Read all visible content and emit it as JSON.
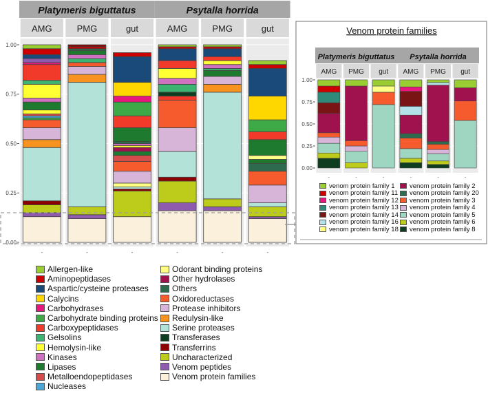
{
  "chart_data": [
    {
      "type": "bar",
      "stacked": true,
      "title": "",
      "xlabel": "",
      "ylabel": "",
      "ylim": [
        0,
        1
      ],
      "y_ticks": [
        "0.00",
        "0.25",
        "0.50",
        "0.75",
        "1.00"
      ],
      "x_tick_label": "-",
      "species": [
        "Platymeris biguttatus",
        "Psytalla horrida"
      ],
      "categories": [
        "AMG",
        "PMG",
        "gut"
      ],
      "bars": [
        {
          "species": "Platymeris biguttatus",
          "sample": "AMG",
          "segments": [
            {
              "cat": "Venom protein families",
              "v": 0.13
            },
            {
              "cat": "Venom peptides",
              "v": 0.02
            },
            {
              "cat": "Uncharacterized",
              "v": 0.04
            },
            {
              "cat": "Transferrins",
              "v": 0.02
            },
            {
              "cat": "Serine proteases",
              "v": 0.27
            },
            {
              "cat": "Redulysin-like",
              "v": 0.04
            },
            {
              "cat": "Protease inhibitors",
              "v": 0.06
            },
            {
              "cat": "Oxidoreductases",
              "v": 0.04
            },
            {
              "cat": "Carbohydrate binding proteins",
              "v": 0.01
            },
            {
              "cat": "Nucleases",
              "v": 0.01
            },
            {
              "cat": "Metalloendopeptidases",
              "v": 0.01
            },
            {
              "cat": "Hemolysin-like",
              "v": 0.02
            },
            {
              "cat": "Lipases",
              "v": 0.04
            },
            {
              "cat": "Kinases",
              "v": 0.02
            },
            {
              "cat": "Hemolysin-like",
              "v": 0.07
            },
            {
              "cat": "Gelsolins",
              "v": 0.02
            },
            {
              "cat": "Carboxypeptidases",
              "v": 0.08
            },
            {
              "cat": "Carbohydrases",
              "v": 0.01
            },
            {
              "cat": "Venom peptides",
              "v": 0.02
            },
            {
              "cat": "Aspartic/cysteine proteases",
              "v": 0.02
            },
            {
              "cat": "Aminopeptidases",
              "v": 0.03
            },
            {
              "cat": "Allergen-like",
              "v": 0.02
            }
          ]
        },
        {
          "species": "Platymeris biguttatus",
          "sample": "PMG",
          "segments": [
            {
              "cat": "Venom protein families",
              "v": 0.12
            },
            {
              "cat": "Venom peptides",
              "v": 0.02
            },
            {
              "cat": "Uncharacterized",
              "v": 0.04
            },
            {
              "cat": "Serine proteases",
              "v": 0.63
            },
            {
              "cat": "Redulysin-like",
              "v": 0.04
            },
            {
              "cat": "Protease inhibitors",
              "v": 0.04
            },
            {
              "cat": "Oxidoreductases",
              "v": 0.02
            },
            {
              "cat": "Gelsolins",
              "v": 0.02
            },
            {
              "cat": "Kinases",
              "v": 0.02
            },
            {
              "cat": "Lipases",
              "v": 0.02
            },
            {
              "cat": "Others",
              "v": 0.01
            },
            {
              "cat": "Aminopeptidases",
              "v": 0.01
            },
            {
              "cat": "Transferrins",
              "v": 0.01
            }
          ]
        },
        {
          "species": "Platymeris biguttatus",
          "sample": "gut",
          "segments": [
            {
              "cat": "Venom protein families",
              "v": 0.13
            },
            {
              "cat": "Uncharacterized",
              "v": 0.13
            },
            {
              "cat": "Transferrins",
              "v": 0.01
            },
            {
              "cat": "Serine proteases",
              "v": 0.01
            },
            {
              "cat": "Odorant binding proteins",
              "v": 0.02
            },
            {
              "cat": "Protease inhibitors",
              "v": 0.06
            },
            {
              "cat": "Oxidoreductases",
              "v": 0.05
            },
            {
              "cat": "Metalloendopeptidases",
              "v": 0.03
            },
            {
              "cat": "Lipases",
              "v": 0.02
            },
            {
              "cat": "Other hydrolases",
              "v": 0.02
            },
            {
              "cat": "Hemolysin-like",
              "v": 0.01
            },
            {
              "cat": "Kinases",
              "v": 0.01
            },
            {
              "cat": "Others",
              "v": 0.01
            },
            {
              "cat": "Lipases",
              "v": 0.07
            },
            {
              "cat": "Carboxypeptidases",
              "v": 0.06
            },
            {
              "cat": "Carbohydrate binding proteins",
              "v": 0.07
            },
            {
              "cat": "Carbohydrases",
              "v": 0.03
            },
            {
              "cat": "Calycins",
              "v": 0.07
            },
            {
              "cat": "Aspartic/cysteine proteases",
              "v": 0.13
            },
            {
              "cat": "Aminopeptidases",
              "v": 0.02
            }
          ]
        },
        {
          "species": "Psytalla horrida",
          "sample": "AMG",
          "segments": [
            {
              "cat": "Venom protein families",
              "v": 0.16
            },
            {
              "cat": "Venom peptides",
              "v": 0.04
            },
            {
              "cat": "Uncharacterized",
              "v": 0.11
            },
            {
              "cat": "Transferrins",
              "v": 0.02
            },
            {
              "cat": "Serine proteases",
              "v": 0.13
            },
            {
              "cat": "Protease inhibitors",
              "v": 0.12
            },
            {
              "cat": "Oxidoreductases",
              "v": 0.14
            },
            {
              "cat": "Carboxypeptidases",
              "v": 0.02
            },
            {
              "cat": "Transferases",
              "v": 0.02
            },
            {
              "cat": "Gelsolins",
              "v": 0.04
            },
            {
              "cat": "Kinases",
              "v": 0.03
            },
            {
              "cat": "Hemolysin-like",
              "v": 0.05
            },
            {
              "cat": "Carboxypeptidases",
              "v": 0.04
            },
            {
              "cat": "Aspartic/cysteine proteases",
              "v": 0.06
            },
            {
              "cat": "Aminopeptidases",
              "v": 0.01
            },
            {
              "cat": "Allergen-like",
              "v": 0.01
            }
          ]
        },
        {
          "species": "Psytalla horrida",
          "sample": "PMG",
          "segments": [
            {
              "cat": "Venom protein families",
              "v": 0.16
            },
            {
              "cat": "Venom peptides",
              "v": 0.02
            },
            {
              "cat": "Uncharacterized",
              "v": 0.04
            },
            {
              "cat": "Serine proteases",
              "v": 0.54
            },
            {
              "cat": "Redulysin-like",
              "v": 0.04
            },
            {
              "cat": "Protease inhibitors",
              "v": 0.04
            },
            {
              "cat": "Lipases",
              "v": 0.03
            },
            {
              "cat": "Gelsolins",
              "v": 0.01
            },
            {
              "cat": "Kinases",
              "v": 0.02
            },
            {
              "cat": "Hemolysin-like",
              "v": 0.02
            },
            {
              "cat": "Carboxypeptidases",
              "v": 0.02
            },
            {
              "cat": "Aspartic/cysteine proteases",
              "v": 0.04
            },
            {
              "cat": "Aminopeptidases",
              "v": 0.01
            },
            {
              "cat": "Allergen-like",
              "v": 0.01
            }
          ]
        },
        {
          "species": "Psytalla horrida",
          "sample": "gut",
          "segments": [
            {
              "cat": "Venom protein families",
              "v": 0.12
            },
            {
              "cat": "Venom peptides",
              "v": 0.01
            },
            {
              "cat": "Uncharacterized",
              "v": 0.05
            },
            {
              "cat": "Serine proteases",
              "v": 0.02
            },
            {
              "cat": "Protease inhibitors",
              "v": 0.09
            },
            {
              "cat": "Oxidoreductases",
              "v": 0.07
            },
            {
              "cat": "Others",
              "v": 0.04
            },
            {
              "cat": "Lipases",
              "v": 0.02
            },
            {
              "cat": "Odorant binding proteins",
              "v": 0.02
            },
            {
              "cat": "Lipases",
              "v": 0.08
            },
            {
              "cat": "Carboxypeptidases",
              "v": 0.04
            },
            {
              "cat": "Carbohydrate binding proteins",
              "v": 0.06
            },
            {
              "cat": "Calycins",
              "v": 0.12
            },
            {
              "cat": "Aspartic/cysteine proteases",
              "v": 0.14
            },
            {
              "cat": "Aminopeptidases",
              "v": 0.02
            },
            {
              "cat": "Allergen-like",
              "v": 0.02
            }
          ]
        }
      ],
      "legend": [
        {
          "label": "Allergen-like",
          "color": "#9ACD32"
        },
        {
          "label": "Aminopeptidases",
          "color": "#CC0000"
        },
        {
          "label": "Aspartic/cysteine proteases",
          "color": "#1A4A7A"
        },
        {
          "label": "Calycins",
          "color": "#FFD700"
        },
        {
          "label": "Carbohydrases",
          "color": "#E8177D"
        },
        {
          "label": "Carbohydrate binding proteins",
          "color": "#3DAA47"
        },
        {
          "label": "Carboxypeptidases",
          "color": "#F23A2A"
        },
        {
          "label": "Gelsolins",
          "color": "#3CB371"
        },
        {
          "label": "Hemolysin-like",
          "color": "#FFFF33"
        },
        {
          "label": "Kinases",
          "color": "#D070C0"
        },
        {
          "label": "Lipases",
          "color": "#1E7A2E"
        },
        {
          "label": "Metalloendopeptidases",
          "color": "#D84B4B"
        },
        {
          "label": "Nucleases",
          "color": "#4AA8D8"
        },
        {
          "label": "Odorant binding proteins",
          "color": "#FFFF88"
        },
        {
          "label": "Other hydrolases",
          "color": "#A0124D"
        },
        {
          "label": "Others",
          "color": "#2E6B4E"
        },
        {
          "label": "Oxidoreductases",
          "color": "#F65B2E"
        },
        {
          "label": "Protease inhibitors",
          "color": "#D7B5D8"
        },
        {
          "label": "Redulysin-like",
          "color": "#F7931E"
        },
        {
          "label": "Serine proteases",
          "color": "#B3E2D8"
        },
        {
          "label": "Transferases",
          "color": "#0E3D1F"
        },
        {
          "label": "Transferrins",
          "color": "#8B0000"
        },
        {
          "label": "Uncharacterized",
          "color": "#BDCC1A"
        },
        {
          "label": "Venom peptides",
          "color": "#8E5BAE"
        },
        {
          "label": "Venom protein families",
          "color": "#FAF0DC"
        }
      ]
    },
    {
      "type": "bar",
      "stacked": true,
      "title": "Venom protein families",
      "xlabel": "",
      "ylabel": "",
      "ylim": [
        0,
        1
      ],
      "y_ticks": [
        "0.00",
        "0.25",
        "0.50",
        "0.75",
        "1.00"
      ],
      "x_tick_label": "-",
      "species": [
        "Platymeris biguttatus",
        "Psytalla horrida"
      ],
      "categories": [
        "AMG",
        "PMG",
        "gut"
      ],
      "bars": [
        {
          "species": "Platymeris biguttatus",
          "sample": "AMG",
          "segments": [
            {
              "cat": "venom protein family 8",
              "v": 0.11
            },
            {
              "cat": "venom protein family 6",
              "v": 0.06
            },
            {
              "cat": "venom protein family 5",
              "v": 0.11
            },
            {
              "cat": "venom protein family 4",
              "v": 0.07
            },
            {
              "cat": "venom protein family 3",
              "v": 0.05
            },
            {
              "cat": "venom protein family 2",
              "v": 0.22
            },
            {
              "cat": "venom protein family 14",
              "v": 0.12
            },
            {
              "cat": "venom protein family 13",
              "v": 0.12
            },
            {
              "cat": "venom protein family 11",
              "v": 0.07
            },
            {
              "cat": "venom protein family 1",
              "v": 0.07
            }
          ]
        },
        {
          "species": "Platymeris biguttatus",
          "sample": "PMG",
          "segments": [
            {
              "cat": "venom protein family 6",
              "v": 0.06
            },
            {
              "cat": "venom protein family 5",
              "v": 0.13
            },
            {
              "cat": "venom protein family 4",
              "v": 0.06
            },
            {
              "cat": "venom protein family 3",
              "v": 0.06
            },
            {
              "cat": "venom protein family 2",
              "v": 0.62
            },
            {
              "cat": "venom protein family 1",
              "v": 0.07
            }
          ]
        },
        {
          "species": "Platymeris biguttatus",
          "sample": "gut",
          "segments": [
            {
              "cat": "venom protein family 5",
              "v": 0.72
            },
            {
              "cat": "venom protein family 3",
              "v": 0.14
            },
            {
              "cat": "venom protein family 18",
              "v": 0.07
            },
            {
              "cat": "venom protein family 1",
              "v": 0.07
            }
          ]
        },
        {
          "species": "Psytalla horrida",
          "sample": "AMG",
          "segments": [
            {
              "cat": "venom protein family 8",
              "v": 0.06
            },
            {
              "cat": "venom protein family 6",
              "v": 0.05
            },
            {
              "cat": "venom protein family 5",
              "v": 0.11
            },
            {
              "cat": "venom protein family 3",
              "v": 0.12
            },
            {
              "cat": "venom protein family 20",
              "v": 0.05
            },
            {
              "cat": "venom protein family 2",
              "v": 0.21
            },
            {
              "cat": "venom protein family 16",
              "v": 0.1
            },
            {
              "cat": "venom protein family 14",
              "v": 0.17
            },
            {
              "cat": "venom protein family 12",
              "v": 0.05
            },
            {
              "cat": "venom protein family 1",
              "v": 0.08
            }
          ]
        },
        {
          "species": "Psytalla horrida",
          "sample": "PMG",
          "segments": [
            {
              "cat": "venom protein family 8",
              "v": 0.04
            },
            {
              "cat": "venom protein family 6",
              "v": 0.04
            },
            {
              "cat": "venom protein family 5",
              "v": 0.08
            },
            {
              "cat": "venom protein family 4",
              "v": 0.05
            },
            {
              "cat": "venom protein family 3",
              "v": 0.06
            },
            {
              "cat": "venom protein family 20",
              "v": 0.03
            },
            {
              "cat": "venom protein family 2",
              "v": 0.64
            },
            {
              "cat": "venom protein family 16",
              "v": 0.03
            },
            {
              "cat": "venom protein family 1",
              "v": 0.03
            }
          ]
        },
        {
          "species": "Psytalla horrida",
          "sample": "gut",
          "segments": [
            {
              "cat": "venom protein family 5",
              "v": 0.54
            },
            {
              "cat": "venom protein family 3",
              "v": 0.22
            },
            {
              "cat": "venom protein family 2",
              "v": 0.15
            },
            {
              "cat": "venom protein family 1",
              "v": 0.09
            }
          ]
        }
      ],
      "legend": [
        {
          "label": "venom protein family 1",
          "color": "#9ACD32"
        },
        {
          "label": "venom protein family 11",
          "color": "#CC0000"
        },
        {
          "label": "venom protein family 12",
          "color": "#E8177D"
        },
        {
          "label": "venom protein family 13",
          "color": "#2E8B7A"
        },
        {
          "label": "venom protein family 14",
          "color": "#7A1515"
        },
        {
          "label": "venom protein family 16",
          "color": "#B3E2E8"
        },
        {
          "label": "venom protein family 18",
          "color": "#FFFF88"
        },
        {
          "label": "venom protein family 2",
          "color": "#A0124D"
        },
        {
          "label": "venom protein family 20",
          "color": "#2E6B4E"
        },
        {
          "label": "venom protein family 3",
          "color": "#F65B2E"
        },
        {
          "label": "venom protein family 4",
          "color": "#D7B5D8"
        },
        {
          "label": "venom protein family 5",
          "color": "#9FD6C2"
        },
        {
          "label": "venom protein family 6",
          "color": "#BDCC1A"
        },
        {
          "label": "venom protein family 8",
          "color": "#0E3D1F"
        }
      ]
    }
  ]
}
